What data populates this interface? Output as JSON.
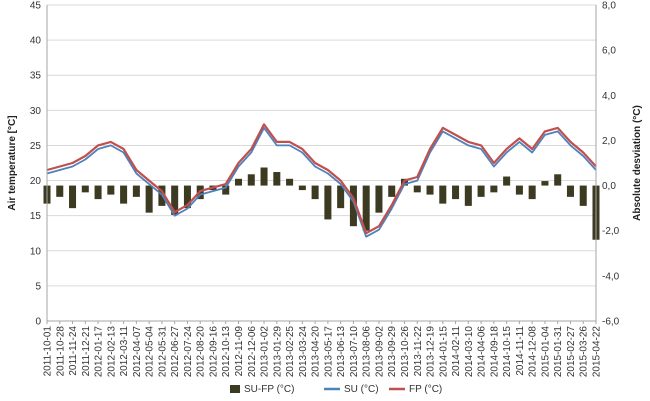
{
  "chart_data": {
    "type": "line",
    "title": "",
    "ylabel": "Air temperature [°C]",
    "y2label": "Absolute desviation (°C)",
    "xlabel": "",
    "ylim": [
      0,
      45
    ],
    "y2lim": [
      -6,
      8
    ],
    "yticks": [
      "0",
      "5",
      "10",
      "15",
      "20",
      "25",
      "30",
      "35",
      "40",
      "45"
    ],
    "y2ticks": [
      "-6,0",
      "-4,0",
      "-2,0",
      "0,0",
      "2,0",
      "4,0",
      "6,0",
      "8,0"
    ],
    "grid": true,
    "legend_position": "bottom",
    "x_dates": [
      "2011-10-01",
      "2011-10-28",
      "2011-11-24",
      "2011-12-21",
      "2012-01-17",
      "2012-02-13",
      "2012-03-11",
      "2012-04-07",
      "2012-05-04",
      "2012-05-31",
      "2012-06-27",
      "2012-07-24",
      "2012-08-20",
      "2012-09-16",
      "2012-10-13",
      "2012-11-09",
      "2012-12-06",
      "2013-01-02",
      "2013-01-29",
      "2013-02-25",
      "2013-03-24",
      "2013-04-20",
      "2013-05-17",
      "2013-06-13",
      "2013-07-10",
      "2013-08-06",
      "2013-09-02",
      "2013-09-29",
      "2013-10-26",
      "2013-11-22",
      "2013-12-19",
      "2014-01-15",
      "2014-02-11",
      "2014-03-10",
      "2014-04-06",
      "2014-09-18",
      "2014-10-15",
      "2014-11-11",
      "2014-12-08",
      "2015-01-04",
      "2015-01-31",
      "2015-02-27",
      "2015-03-26",
      "2015-04-22"
    ],
    "series": [
      {
        "name": "SU-FP (°C)",
        "type": "bar",
        "axis": "right",
        "color": "#3d3a22",
        "values": [
          -0.8,
          -0.5,
          -1.0,
          -0.3,
          -0.6,
          -0.4,
          -0.8,
          -0.5,
          -1.2,
          -0.9,
          -1.3,
          -1.0,
          -0.6,
          -0.2,
          -0.4,
          0.3,
          0.5,
          0.8,
          0.6,
          0.3,
          -0.2,
          -0.6,
          -1.5,
          -1.0,
          -1.8,
          -2.0,
          -1.2,
          -0.5,
          0.3,
          -0.3,
          -0.4,
          -0.8,
          -0.6,
          -0.9,
          -0.5,
          -0.3,
          0.4,
          -0.4,
          -0.6,
          0.2,
          0.5,
          -0.5,
          -0.9,
          -2.4
        ]
      },
      {
        "name": "SU (°C)",
        "type": "line",
        "axis": "left",
        "color": "#4f81bd",
        "values": [
          21,
          21.5,
          22,
          23,
          24.5,
          25,
          24,
          21,
          19.5,
          18,
          15,
          16,
          18,
          18.5,
          19,
          22,
          24,
          27.5,
          25,
          25,
          24,
          22,
          21,
          19.5,
          17,
          12,
          13,
          16,
          19.5,
          20,
          24,
          27,
          26,
          25,
          24.5,
          22,
          24,
          25.5,
          24,
          26.5,
          27,
          25,
          23.5,
          21.5
        ]
      },
      {
        "name": "FP (°C)",
        "type": "line",
        "axis": "left",
        "color": "#c0504d",
        "values": [
          21.5,
          22,
          22.5,
          23.5,
          25,
          25.5,
          24.5,
          21.5,
          20,
          18.5,
          15.5,
          16.5,
          18.5,
          19,
          19.5,
          22.5,
          24.5,
          28,
          25.5,
          25.5,
          24.5,
          22.5,
          21.5,
          20,
          17.5,
          12.5,
          13.5,
          16.5,
          20,
          20.5,
          24.5,
          27.5,
          26.5,
          25.5,
          25,
          22.5,
          24.5,
          26,
          24.5,
          27,
          27.5,
          25.5,
          24,
          22
        ]
      }
    ]
  }
}
